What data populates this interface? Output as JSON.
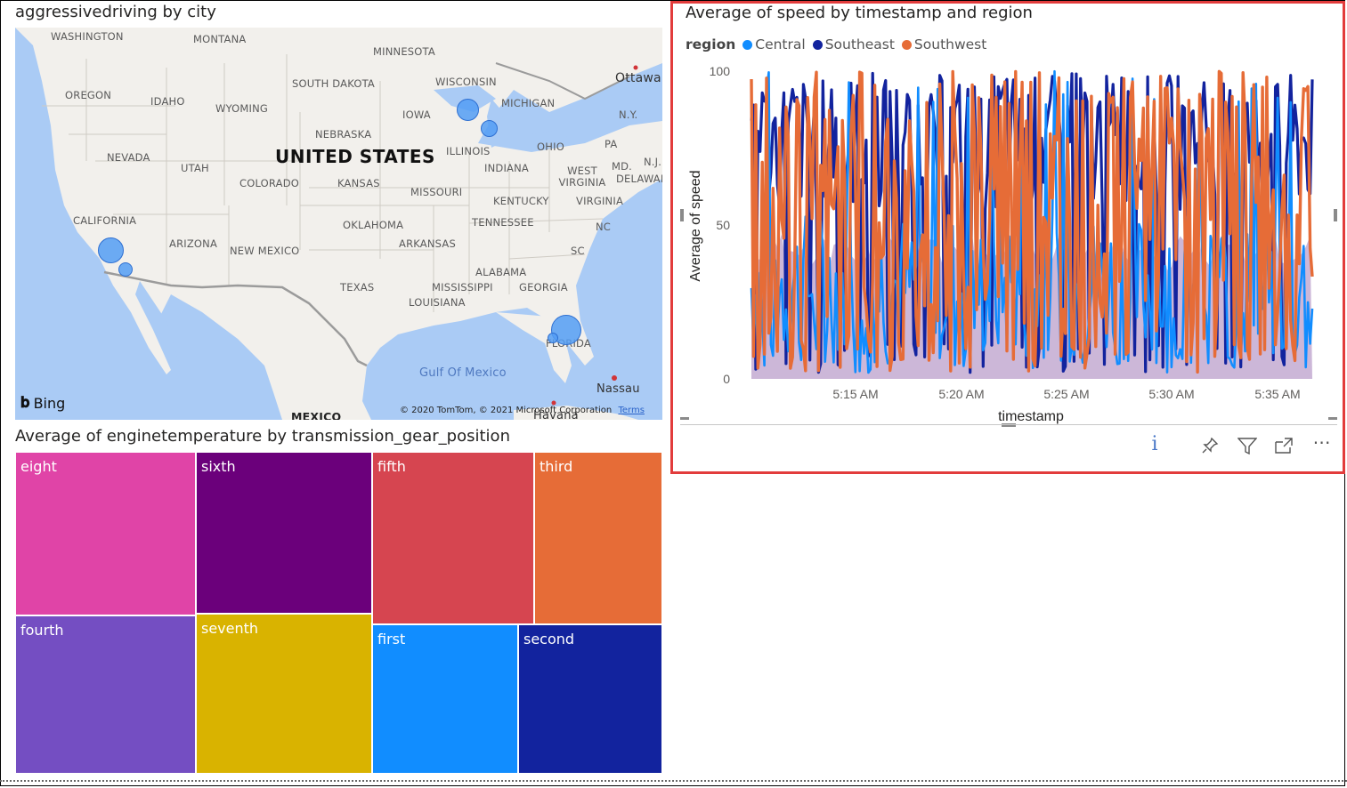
{
  "map": {
    "title": "aggressivedriving by city",
    "labels": {
      "washington": "WASHINGTON",
      "montana": "MONTANA",
      "minnesota": "MINNESOTA",
      "wisconsin": "WISCONSIN",
      "ottawa": "Ottawa",
      "oregon": "OREGON",
      "idaho": "IDAHO",
      "south_dakota": "SOUTH DAKOTA",
      "wyoming": "WYOMING",
      "iowa": "IOWA",
      "michigan": "MICHIGAN",
      "ny": "N.Y.",
      "nebraska": "NEBRASKA",
      "illinois": "ILLINOIS",
      "ohio": "OHIO",
      "pa": "PA",
      "nevada": "NEVADA",
      "utah": "UTAH",
      "united_states": "UNITED STATES",
      "indiana": "INDIANA",
      "west_virginia": "WEST VIRGINIA",
      "md": "MD.",
      "nj": "N.J.",
      "delaware": "DELAWARE",
      "colorado": "COLORADO",
      "kansas": "KANSAS",
      "missouri": "MISSOURI",
      "kentucky": "KENTUCKY",
      "virginia": "VIRGINIA",
      "california": "CALIFORNIA",
      "oklahoma": "OKLAHOMA",
      "tennessee": "TENNESSEE",
      "nc": "NC",
      "arizona": "ARIZONA",
      "new_mexico": "NEW MEXICO",
      "arkansas": "ARKANSAS",
      "sc": "SC",
      "alabama": "ALABAMA",
      "texas": "TEXAS",
      "mississippi": "MISSISSIPPI",
      "georgia": "GEORGIA",
      "louisiana": "LOUISIANA",
      "florida": "FLORIDA",
      "gulf": "Gulf Of Mexico",
      "nassau": "Nassau",
      "mexico": "MEXICO",
      "havana": "Havana"
    },
    "bing": "Bing",
    "attribution": "© 2020 TomTom, © 2021 Microsoft Corporation",
    "terms": "Terms"
  },
  "treemap": {
    "title": "Average of enginetemperature by transmission_gear_position",
    "cells": [
      {
        "label": "eight",
        "color": "#e044a7"
      },
      {
        "label": "sixth",
        "color": "#6b007b"
      },
      {
        "label": "fifth",
        "color": "#d64550"
      },
      {
        "label": "third",
        "color": "#e66c37"
      },
      {
        "label": "fourth",
        "color": "#744ec2"
      },
      {
        "label": "seventh",
        "color": "#d9b300"
      },
      {
        "label": "first",
        "color": "#118dff"
      },
      {
        "label": "second",
        "color": "#12239e"
      }
    ]
  },
  "chart": {
    "title": "Average of speed by timestamp and region",
    "legend_title": "region",
    "icons": [
      "info-icon",
      "pin-icon",
      "filter-icon",
      "focus-mode-icon",
      "more-options-icon"
    ]
  },
  "chart_data": {
    "type": "line",
    "title": "Average of speed by timestamp and region",
    "xlabel": "timestamp",
    "ylabel": "Average of speed",
    "ylim": [
      0,
      100
    ],
    "yticks": [
      "0",
      "50",
      "100"
    ],
    "x_ticks": [
      "5:15 AM",
      "5:20 AM",
      "5:25 AM",
      "5:30 AM",
      "5:35 AM"
    ],
    "x_range": [
      "5:10 AM",
      "5:36 AM"
    ],
    "legend_position": "top-left",
    "series": [
      {
        "name": "Central",
        "color": "#118dff"
      },
      {
        "name": "Southeast",
        "color": "#12239e"
      },
      {
        "name": "Southwest",
        "color": "#e66c37"
      }
    ],
    "note_values": "dense series, values oscillate between 0 and 100"
  },
  "colors": {
    "highlight_border": "#e23c3c",
    "map_water": "#aacbf5",
    "map_land": "#f2f0ec"
  }
}
